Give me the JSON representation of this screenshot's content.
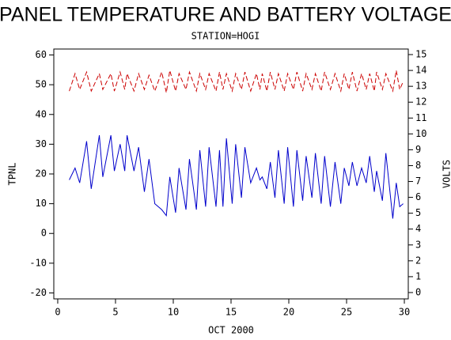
{
  "chart_data": {
    "type": "line",
    "title": "PANEL TEMPERATURE AND BATTERY VOLTAGE",
    "subtitle": "STATION=HOGI",
    "x_label": "OCT 2000",
    "y_label": "TPNL",
    "y2_label": "VOLTS",
    "x": [
      1.0,
      1.5,
      1.9,
      2.5,
      2.9,
      3.6,
      3.9,
      4.6,
      4.9,
      5.4,
      5.8,
      6.0,
      6.6,
      7.0,
      7.5,
      7.9,
      8.4,
      9.0,
      9.4,
      9.7,
      10.2,
      10.5,
      11.1,
      11.4,
      12.0,
      12.3,
      12.8,
      13.1,
      13.7,
      14.0,
      14.3,
      14.6,
      15.1,
      15.4,
      15.9,
      16.2,
      16.7,
      17.2,
      17.5,
      17.7,
      18.1,
      18.4,
      18.8,
      19.1,
      19.6,
      19.9,
      20.4,
      20.7,
      21.2,
      21.5,
      22.0,
      22.3,
      22.8,
      23.1,
      23.6,
      24.0,
      24.5,
      24.8,
      25.2,
      25.5,
      25.9,
      26.3,
      26.7,
      27.0,
      27.4,
      27.6,
      28.1,
      28.4,
      29.0,
      29.3,
      29.6,
      29.9
    ],
    "series": [
      {
        "name": "TPNL",
        "color": "#0000cc",
        "axis": "y",
        "dashed": false,
        "values": [
          18,
          22,
          17,
          31,
          15,
          33,
          19,
          33,
          21,
          30,
          21,
          33,
          21,
          29,
          14,
          25,
          10,
          8,
          6,
          19,
          7,
          22,
          8,
          25,
          8,
          28,
          9,
          29,
          9,
          28,
          9,
          32,
          10,
          30,
          12,
          29,
          17,
          22,
          18,
          19,
          15,
          24,
          12,
          28,
          10,
          29,
          9,
          28,
          11,
          26,
          12,
          27,
          10,
          26,
          9,
          24,
          10,
          22,
          16,
          24,
          16,
          22,
          17,
          26,
          14,
          21,
          11,
          27,
          5,
          17,
          9,
          10
        ]
      },
      {
        "name": "VOLTS",
        "color": "#cc0000",
        "axis": "y2",
        "dashed": true,
        "values": [
          12.7,
          13.8,
          12.8,
          13.9,
          12.7,
          13.8,
          12.8,
          13.8,
          12.7,
          13.9,
          12.8,
          13.8,
          12.7,
          13.8,
          12.8,
          13.7,
          12.7,
          13.9,
          12.6,
          14.0,
          12.7,
          13.8,
          12.8,
          13.9,
          12.7,
          13.8,
          12.8,
          13.8,
          12.7,
          13.9,
          12.8,
          13.8,
          12.7,
          13.8,
          12.8,
          13.9,
          12.7,
          13.8,
          12.8,
          13.8,
          12.7,
          13.9,
          12.8,
          13.8,
          12.7,
          13.8,
          12.8,
          13.9,
          12.7,
          13.8,
          12.8,
          13.8,
          12.7,
          13.9,
          12.8,
          13.8,
          12.7,
          13.8,
          12.8,
          13.9,
          12.7,
          13.8,
          12.8,
          13.8,
          12.7,
          13.9,
          12.8,
          13.8,
          12.7,
          14.0,
          12.8,
          13.3
        ]
      }
    ],
    "xlim": [
      -0.34,
      30.34
    ],
    "xticks": [
      0,
      5,
      10,
      15,
      20,
      25,
      30
    ],
    "ylim": [
      -22,
      62
    ],
    "yticks": [
      -20,
      -10,
      0,
      10,
      20,
      30,
      40,
      50,
      60
    ],
    "y2lim": [
      -0.4,
      15.35
    ],
    "y2ticks": [
      0,
      1,
      2,
      3,
      4,
      5,
      6,
      7,
      8,
      9,
      10,
      11,
      12,
      13,
      14,
      15
    ]
  }
}
